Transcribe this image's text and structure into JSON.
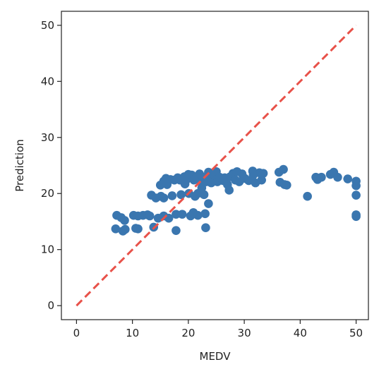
{
  "colors": {
    "points": "#3a76af",
    "identity_line": "#e8524a",
    "axes": "#222222",
    "background": "#ffffff"
  },
  "chart_data": {
    "type": "scatter",
    "title": "",
    "xlabel": "MEDV",
    "ylabel": "Prediction",
    "xlim": [
      -2.7,
      52.2
    ],
    "ylim": [
      -2.5,
      52.5
    ],
    "xticks": [
      0,
      10,
      20,
      30,
      40,
      50
    ],
    "yticks": [
      0,
      10,
      20,
      30,
      40,
      50
    ],
    "grid": false,
    "legend": "none",
    "reference_line": {
      "style": "dashed",
      "from": [
        0,
        0
      ],
      "to": [
        50,
        50
      ]
    },
    "points": [
      [
        7.0,
        13.7
      ],
      [
        7.2,
        16.1
      ],
      [
        8.0,
        15.7
      ],
      [
        8.3,
        13.3
      ],
      [
        8.6,
        15.2
      ],
      [
        8.7,
        13.6
      ],
      [
        10.2,
        16.1
      ],
      [
        10.6,
        13.8
      ],
      [
        11.0,
        13.7
      ],
      [
        11.0,
        16.0
      ],
      [
        11.9,
        16.1
      ],
      [
        12.7,
        16.2
      ],
      [
        13.1,
        16.0
      ],
      [
        13.4,
        19.7
      ],
      [
        13.8,
        14.0
      ],
      [
        14.2,
        19.2
      ],
      [
        14.6,
        15.6
      ],
      [
        15.0,
        21.5
      ],
      [
        15.1,
        19.5
      ],
      [
        15.6,
        22.2
      ],
      [
        15.6,
        19.2
      ],
      [
        15.6,
        16.0
      ],
      [
        16.0,
        22.7
      ],
      [
        16.2,
        21.6
      ],
      [
        16.5,
        15.6
      ],
      [
        16.8,
        22.5
      ],
      [
        17.1,
        19.6
      ],
      [
        17.5,
        22.4
      ],
      [
        17.8,
        13.4
      ],
      [
        17.8,
        16.3
      ],
      [
        18.1,
        22.8
      ],
      [
        18.5,
        22.4
      ],
      [
        18.7,
        19.8
      ],
      [
        18.9,
        16.3
      ],
      [
        19.3,
        23.0
      ],
      [
        19.4,
        21.7
      ],
      [
        19.6,
        22.4
      ],
      [
        19.9,
        22.8
      ],
      [
        20.0,
        23.4
      ],
      [
        20.1,
        20.0
      ],
      [
        20.4,
        16.0
      ],
      [
        20.6,
        23.3
      ],
      [
        20.9,
        16.6
      ],
      [
        21.0,
        22.4
      ],
      [
        21.2,
        19.5
      ],
      [
        21.4,
        22.8
      ],
      [
        21.7,
        20.0
      ],
      [
        21.7,
        16.1
      ],
      [
        22.0,
        23.5
      ],
      [
        22.2,
        22.1
      ],
      [
        22.4,
        21.0
      ],
      [
        22.6,
        22.9
      ],
      [
        22.8,
        19.8
      ],
      [
        23.0,
        16.4
      ],
      [
        23.1,
        13.9
      ],
      [
        23.2,
        22.1
      ],
      [
        23.6,
        23.8
      ],
      [
        23.6,
        18.2
      ],
      [
        23.8,
        22.6
      ],
      [
        24.1,
        21.9
      ],
      [
        24.4,
        23.5
      ],
      [
        24.8,
        22.3
      ],
      [
        25.0,
        23.9
      ],
      [
        25.2,
        22.1
      ],
      [
        25.6,
        22.9
      ],
      [
        26.2,
        22.3
      ],
      [
        26.5,
        22.8
      ],
      [
        27.0,
        21.6
      ],
      [
        27.3,
        20.6
      ],
      [
        27.5,
        23.0
      ],
      [
        28.0,
        23.6
      ],
      [
        28.4,
        22.4
      ],
      [
        28.7,
        23.9
      ],
      [
        29.1,
        22.1
      ],
      [
        29.6,
        23.5
      ],
      [
        30.1,
        22.7
      ],
      [
        30.8,
        22.3
      ],
      [
        31.5,
        24.0
      ],
      [
        31.6,
        23.3
      ],
      [
        32.0,
        21.9
      ],
      [
        32.7,
        23.7
      ],
      [
        33.1,
        22.4
      ],
      [
        33.4,
        23.6
      ],
      [
        36.2,
        23.8
      ],
      [
        36.4,
        22.0
      ],
      [
        37.0,
        24.3
      ],
      [
        37.2,
        21.6
      ],
      [
        37.6,
        21.5
      ],
      [
        41.3,
        19.5
      ],
      [
        42.8,
        22.9
      ],
      [
        43.1,
        22.5
      ],
      [
        43.8,
        22.9
      ],
      [
        45.4,
        23.4
      ],
      [
        46.0,
        23.8
      ],
      [
        46.7,
        22.9
      ],
      [
        48.5,
        22.6
      ],
      [
        50.0,
        22.2
      ],
      [
        50.0,
        21.4
      ],
      [
        50.0,
        19.7
      ],
      [
        50.0,
        16.2
      ],
      [
        50.0,
        15.9
      ]
    ]
  }
}
